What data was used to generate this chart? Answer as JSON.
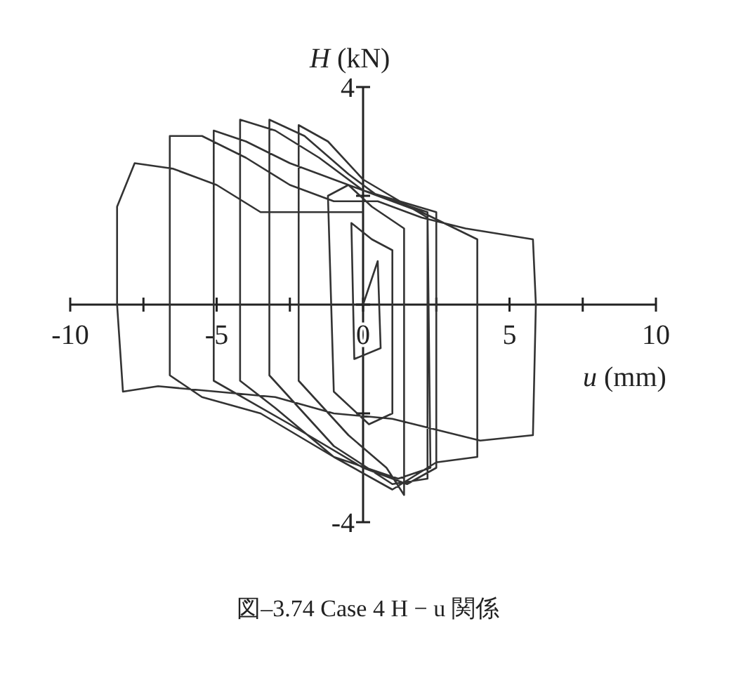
{
  "chart_data": {
    "type": "line",
    "title": "図–3.74 Case 4 H − u 関係",
    "xlabel": "u (mm)",
    "ylabel": "H (kN)",
    "xlim": [
      -10,
      10
    ],
    "ylim": [
      -4,
      4
    ],
    "xticks": [
      -10,
      {
        "value": -7.5,
        "label": null
      },
      -5,
      {
        "value": -2.5,
        "label": null
      },
      0,
      {
        "value": 2.5,
        "label": null
      },
      5,
      {
        "value": 7.5,
        "label": null
      },
      10
    ],
    "yticks": [
      -4,
      {
        "value": -2,
        "label": null
      },
      {
        "value": 0,
        "label": null
      },
      {
        "value": 2,
        "label": null
      },
      4
    ],
    "marker": "none",
    "line_style": "solid",
    "series": [
      {
        "color": "#333333",
        "x": [
          0,
          0.5,
          0.6,
          -0.3,
          -0.4,
          0.3,
          1.0,
          1.0,
          0.2,
          -1.0,
          -1.2,
          -0.5,
          0.3,
          1.4,
          1.4,
          0.8,
          -0.5,
          -2.2,
          -2.2,
          -1.2,
          0,
          2.2,
          2.2,
          1.0,
          -1.0,
          -3.2,
          -3.2,
          -2.0,
          -0.5,
          0.5,
          2.2,
          2.3,
          1.2,
          -1.0,
          -3.0,
          -4.2,
          -4.2,
          -3.0,
          -1.5,
          0,
          2.5,
          2.5,
          1.5,
          0,
          -2.5,
          -5.1,
          -5.1,
          -4.0,
          -2.5,
          -1,
          0.5,
          2.0,
          3.9,
          3.9,
          2.5,
          1.0,
          -1.0,
          -3.5,
          -5.5,
          -6.6,
          -6.6,
          -5.5,
          -4.0,
          -2.5,
          -1,
          0.5,
          2,
          3.5,
          5.8,
          5.9,
          5.8,
          4,
          2.5,
          1,
          -1,
          -3,
          -5,
          -7,
          -8.2,
          -8.4,
          -8.4,
          -7.8,
          -6.5,
          -5,
          -3.5,
          -1.5,
          0
        ],
        "values": [
          0,
          0.8,
          -0.8,
          -1.0,
          1.5,
          1.2,
          1.0,
          -2.0,
          -2.2,
          -1.6,
          2.0,
          2.2,
          1.8,
          1.4,
          -3.5,
          -3.0,
          -2.4,
          -1.4,
          3.3,
          3.0,
          2.3,
          1.6,
          -3.2,
          -3.3,
          -2.6,
          -1.3,
          3.4,
          3.1,
          2.4,
          2.0,
          1.7,
          -3.0,
          -3.2,
          -2.8,
          -1.9,
          -1.4,
          3.4,
          3.2,
          2.7,
          2.1,
          1.7,
          -3.0,
          -3.3,
          -3.0,
          -2.2,
          -1.4,
          3.2,
          3.0,
          2.6,
          2.3,
          2.0,
          1.7,
          1.2,
          -2.8,
          -2.9,
          -3.4,
          -2.8,
          -2.0,
          -1.7,
          -1.3,
          3.1,
          3.1,
          2.7,
          2.2,
          1.9,
          1.9,
          1.6,
          1.4,
          1.2,
          0,
          -2.4,
          -2.5,
          -2.3,
          -2.1,
          -2.0,
          -1.7,
          -1.6,
          -1.5,
          -1.6,
          0,
          1.8,
          2.6,
          2.5,
          2.2,
          1.7,
          1.7,
          1.7
        ]
      }
    ]
  }
}
